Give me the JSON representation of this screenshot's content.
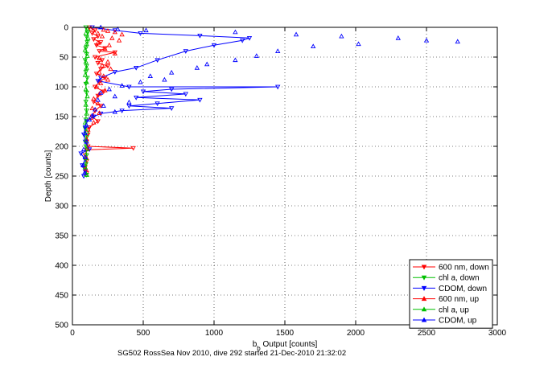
{
  "chart_data": {
    "type": "scatter",
    "title": "",
    "xlabel_main": "b",
    "xlabel_sub": "b",
    "xlabel_rest": " Output [counts]",
    "ylabel": "Depth [counts]",
    "xlim": [
      0,
      3000
    ],
    "ylim": [
      500,
      0
    ],
    "y_reversed": true,
    "grid": true,
    "x_ticks": [
      0,
      500,
      1000,
      1500,
      2000,
      2500,
      3000
    ],
    "y_ticks": [
      0,
      50,
      100,
      150,
      200,
      250,
      300,
      350,
      400,
      450,
      500
    ],
    "legend_position": "bottom-right",
    "caption": "SG502 RossSea Nov 2010, dive 292 started 21-Dec-2010 21:32:02",
    "series": [
      {
        "name": "600 nm, down",
        "color": "#ff0000",
        "marker": "triangle-down",
        "line": true,
        "points": [
          [
            120,
            0
          ],
          [
            160,
            5
          ],
          [
            140,
            10
          ],
          [
            180,
            15
          ],
          [
            150,
            20
          ],
          [
            200,
            25
          ],
          [
            170,
            30
          ],
          [
            230,
            35
          ],
          [
            190,
            40
          ],
          [
            300,
            42
          ],
          [
            160,
            50
          ],
          [
            210,
            55
          ],
          [
            180,
            60
          ],
          [
            250,
            65
          ],
          [
            200,
            70
          ],
          [
            170,
            78
          ],
          [
            230,
            85
          ],
          [
            190,
            92
          ],
          [
            160,
            100
          ],
          [
            220,
            108
          ],
          [
            180,
            115
          ],
          [
            150,
            125
          ],
          [
            200,
            132
          ],
          [
            160,
            140
          ],
          [
            140,
            150
          ],
          [
            180,
            158
          ],
          [
            120,
            168
          ],
          [
            110,
            180
          ],
          [
            100,
            192
          ],
          [
            110,
            200
          ],
          [
            430,
            203
          ],
          [
            100,
            206
          ],
          [
            90,
            215
          ],
          [
            100,
            225
          ],
          [
            90,
            235
          ],
          [
            100,
            245
          ]
        ]
      },
      {
        "name": "chl a, down",
        "color": "#00c000",
        "marker": "triangle-down",
        "line": true,
        "points": [
          [
            95,
            0
          ],
          [
            110,
            8
          ],
          [
            100,
            16
          ],
          [
            105,
            25
          ],
          [
            95,
            35
          ],
          [
            100,
            45
          ],
          [
            90,
            55
          ],
          [
            100,
            65
          ],
          [
            95,
            75
          ],
          [
            105,
            85
          ],
          [
            95,
            95
          ],
          [
            100,
            110
          ],
          [
            95,
            125
          ],
          [
            100,
            140
          ],
          [
            95,
            155
          ],
          [
            90,
            170
          ],
          [
            100,
            185
          ],
          [
            95,
            200
          ],
          [
            100,
            215
          ],
          [
            95,
            230
          ],
          [
            100,
            248
          ]
        ]
      },
      {
        "name": "CDOM, down",
        "color": "#0000ff",
        "marker": "triangle-down",
        "line": true,
        "points": [
          [
            140,
            0
          ],
          [
            300,
            5
          ],
          [
            480,
            10
          ],
          [
            900,
            14
          ],
          [
            1250,
            18
          ],
          [
            1200,
            22
          ],
          [
            1000,
            30
          ],
          [
            800,
            40
          ],
          [
            600,
            55
          ],
          [
            450,
            68
          ],
          [
            300,
            75
          ],
          [
            200,
            85
          ],
          [
            180,
            90
          ],
          [
            400,
            100
          ],
          [
            1450,
            100
          ],
          [
            700,
            104
          ],
          [
            500,
            108
          ],
          [
            800,
            112
          ],
          [
            450,
            118
          ],
          [
            900,
            122
          ],
          [
            600,
            128
          ],
          [
            400,
            132
          ],
          [
            700,
            136
          ],
          [
            350,
            140
          ],
          [
            200,
            145
          ],
          [
            150,
            150
          ],
          [
            100,
            158
          ],
          [
            90,
            168
          ],
          [
            80,
            180
          ],
          [
            90,
            192
          ],
          [
            120,
            205
          ],
          [
            60,
            212
          ],
          [
            90,
            222
          ],
          [
            70,
            232
          ],
          [
            90,
            242
          ],
          [
            80,
            250
          ]
        ]
      },
      {
        "name": "600 nm, up",
        "color": "#ff0000",
        "marker": "triangle-up",
        "line": false,
        "points": [
          [
            130,
            2
          ],
          [
            220,
            4
          ],
          [
            250,
            6
          ],
          [
            300,
            8
          ],
          [
            180,
            10
          ],
          [
            350,
            12
          ],
          [
            210,
            15
          ],
          [
            280,
            18
          ],
          [
            330,
            22
          ],
          [
            180,
            26
          ],
          [
            260,
            30
          ],
          [
            230,
            36
          ],
          [
            300,
            44
          ],
          [
            190,
            52
          ],
          [
            250,
            58
          ],
          [
            210,
            64
          ],
          [
            270,
            70
          ],
          [
            190,
            76
          ],
          [
            220,
            82
          ],
          [
            250,
            88
          ],
          [
            200,
            94
          ],
          [
            170,
            100
          ],
          [
            230,
            106
          ],
          [
            190,
            112
          ],
          [
            150,
            120
          ],
          [
            180,
            128
          ],
          [
            140,
            136
          ],
          [
            190,
            144
          ],
          [
            130,
            152
          ],
          [
            150,
            160
          ],
          [
            110,
            172
          ],
          [
            100,
            188
          ],
          [
            105,
            204
          ],
          [
            100,
            220
          ],
          [
            95,
            238
          ]
        ]
      },
      {
        "name": "chl a, up",
        "color": "#00c000",
        "marker": "triangle-up",
        "line": false,
        "points": [
          [
            105,
            3
          ],
          [
            95,
            10
          ],
          [
            110,
            18
          ],
          [
            100,
            28
          ],
          [
            90,
            38
          ],
          [
            105,
            48
          ],
          [
            95,
            58
          ],
          [
            100,
            68
          ],
          [
            90,
            80
          ],
          [
            100,
            92
          ],
          [
            95,
            104
          ],
          [
            105,
            116
          ],
          [
            95,
            130
          ],
          [
            100,
            145
          ],
          [
            90,
            160
          ],
          [
            100,
            175
          ],
          [
            95,
            190
          ],
          [
            100,
            205
          ],
          [
            95,
            220
          ],
          [
            90,
            235
          ],
          [
            100,
            248
          ]
        ]
      },
      {
        "name": "CDOM, up",
        "color": "#0000ff",
        "marker": "triangle-up",
        "line": false,
        "points": [
          [
            200,
            0
          ],
          [
            320,
            3
          ],
          [
            520,
            5
          ],
          [
            1150,
            8
          ],
          [
            1580,
            12
          ],
          [
            1900,
            15
          ],
          [
            2300,
            18
          ],
          [
            2500,
            22
          ],
          [
            2720,
            24
          ],
          [
            2020,
            28
          ],
          [
            1700,
            32
          ],
          [
            1450,
            40
          ],
          [
            1300,
            48
          ],
          [
            1150,
            55
          ],
          [
            950,
            62
          ],
          [
            880,
            68
          ],
          [
            700,
            76
          ],
          [
            550,
            82
          ],
          [
            650,
            88
          ],
          [
            480,
            92
          ],
          [
            350,
            98
          ],
          [
            260,
            104
          ],
          [
            200,
            110
          ],
          [
            300,
            116
          ],
          [
            180,
            122
          ],
          [
            400,
            126
          ],
          [
            220,
            132
          ],
          [
            160,
            138
          ],
          [
            300,
            142
          ],
          [
            140,
            148
          ],
          [
            120,
            155
          ],
          [
            100,
            165
          ],
          [
            90,
            178
          ],
          [
            100,
            192
          ],
          [
            80,
            205
          ],
          [
            90,
            218
          ],
          [
            75,
            232
          ],
          [
            85,
            245
          ]
        ]
      }
    ]
  }
}
